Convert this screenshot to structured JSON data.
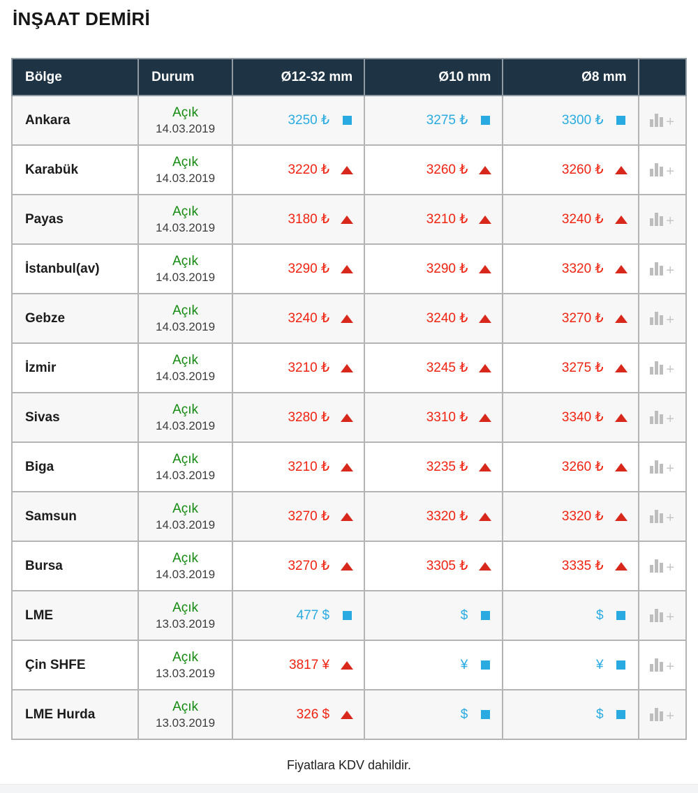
{
  "page": {
    "title": "İNŞAAT DEMİRİ",
    "footer_note": "Fiyatlara KDV dahildir."
  },
  "colors": {
    "header_bg": "#1e3344",
    "status_open_green": "#148a10",
    "price_up_red": "#f02311",
    "trend_up_triangle_red": "#d8281c",
    "price_steady_blue": "#29abe2",
    "zebra_row_gray": "#f7f7f7",
    "chart_icon_gray": "#bdbdbd"
  },
  "icons": {
    "trend_up": "red-triangle-up",
    "trend_steady": "blue-square",
    "chart_add": "bar-chart-plus"
  },
  "table": {
    "columns": [
      {
        "label": "Bölge"
      },
      {
        "label": "Durum"
      },
      {
        "label": "Ø12-32 mm"
      },
      {
        "label": "Ø10 mm"
      },
      {
        "label": "Ø8 mm"
      },
      {
        "label": ""
      }
    ],
    "rows": [
      {
        "region": "Ankara",
        "status": "Açık",
        "date": "14.03.2019",
        "prices": [
          {
            "value": "3250",
            "currency": "₺",
            "trend": "steady"
          },
          {
            "value": "3275",
            "currency": "₺",
            "trend": "steady"
          },
          {
            "value": "3300",
            "currency": "₺",
            "trend": "steady"
          }
        ]
      },
      {
        "region": "Karabük",
        "status": "Açık",
        "date": "14.03.2019",
        "prices": [
          {
            "value": "3220",
            "currency": "₺",
            "trend": "up"
          },
          {
            "value": "3260",
            "currency": "₺",
            "trend": "up"
          },
          {
            "value": "3260",
            "currency": "₺",
            "trend": "up"
          }
        ]
      },
      {
        "region": "Payas",
        "status": "Açık",
        "date": "14.03.2019",
        "prices": [
          {
            "value": "3180",
            "currency": "₺",
            "trend": "up"
          },
          {
            "value": "3210",
            "currency": "₺",
            "trend": "up"
          },
          {
            "value": "3240",
            "currency": "₺",
            "trend": "up"
          }
        ]
      },
      {
        "region": "İstanbul(av)",
        "status": "Açık",
        "date": "14.03.2019",
        "prices": [
          {
            "value": "3290",
            "currency": "₺",
            "trend": "up"
          },
          {
            "value": "3290",
            "currency": "₺",
            "trend": "up"
          },
          {
            "value": "3320",
            "currency": "₺",
            "trend": "up"
          }
        ]
      },
      {
        "region": "Gebze",
        "status": "Açık",
        "date": "14.03.2019",
        "prices": [
          {
            "value": "3240",
            "currency": "₺",
            "trend": "up"
          },
          {
            "value": "3240",
            "currency": "₺",
            "trend": "up"
          },
          {
            "value": "3270",
            "currency": "₺",
            "trend": "up"
          }
        ]
      },
      {
        "region": "İzmir",
        "status": "Açık",
        "date": "14.03.2019",
        "prices": [
          {
            "value": "3210",
            "currency": "₺",
            "trend": "up"
          },
          {
            "value": "3245",
            "currency": "₺",
            "trend": "up"
          },
          {
            "value": "3275",
            "currency": "₺",
            "trend": "up"
          }
        ]
      },
      {
        "region": "Sivas",
        "status": "Açık",
        "date": "14.03.2019",
        "prices": [
          {
            "value": "3280",
            "currency": "₺",
            "trend": "up"
          },
          {
            "value": "3310",
            "currency": "₺",
            "trend": "up"
          },
          {
            "value": "3340",
            "currency": "₺",
            "trend": "up"
          }
        ]
      },
      {
        "region": "Biga",
        "status": "Açık",
        "date": "14.03.2019",
        "prices": [
          {
            "value": "3210",
            "currency": "₺",
            "trend": "up"
          },
          {
            "value": "3235",
            "currency": "₺",
            "trend": "up"
          },
          {
            "value": "3260",
            "currency": "₺",
            "trend": "up"
          }
        ]
      },
      {
        "region": "Samsun",
        "status": "Açık",
        "date": "14.03.2019",
        "prices": [
          {
            "value": "3270",
            "currency": "₺",
            "trend": "up"
          },
          {
            "value": "3320",
            "currency": "₺",
            "trend": "up"
          },
          {
            "value": "3320",
            "currency": "₺",
            "trend": "up"
          }
        ]
      },
      {
        "region": "Bursa",
        "status": "Açık",
        "date": "14.03.2019",
        "prices": [
          {
            "value": "3270",
            "currency": "₺",
            "trend": "up"
          },
          {
            "value": "3305",
            "currency": "₺",
            "trend": "up"
          },
          {
            "value": "3335",
            "currency": "₺",
            "trend": "up"
          }
        ]
      },
      {
        "region": "LME",
        "status": "Açık",
        "date": "13.03.2019",
        "prices": [
          {
            "value": "477",
            "currency": "$",
            "trend": "steady"
          },
          {
            "value": "",
            "currency": "$",
            "trend": "steady"
          },
          {
            "value": "",
            "currency": "$",
            "trend": "steady"
          }
        ]
      },
      {
        "region": "Çin SHFE",
        "status": "Açık",
        "date": "13.03.2019",
        "prices": [
          {
            "value": "3817",
            "currency": "¥",
            "trend": "up"
          },
          {
            "value": "",
            "currency": "¥",
            "trend": "steady"
          },
          {
            "value": "",
            "currency": "¥",
            "trend": "steady"
          }
        ]
      },
      {
        "region": "LME Hurda",
        "status": "Açık",
        "date": "13.03.2019",
        "prices": [
          {
            "value": "326",
            "currency": "$",
            "trend": "up"
          },
          {
            "value": "",
            "currency": "$",
            "trend": "steady"
          },
          {
            "value": "",
            "currency": "$",
            "trend": "steady"
          }
        ]
      }
    ]
  }
}
